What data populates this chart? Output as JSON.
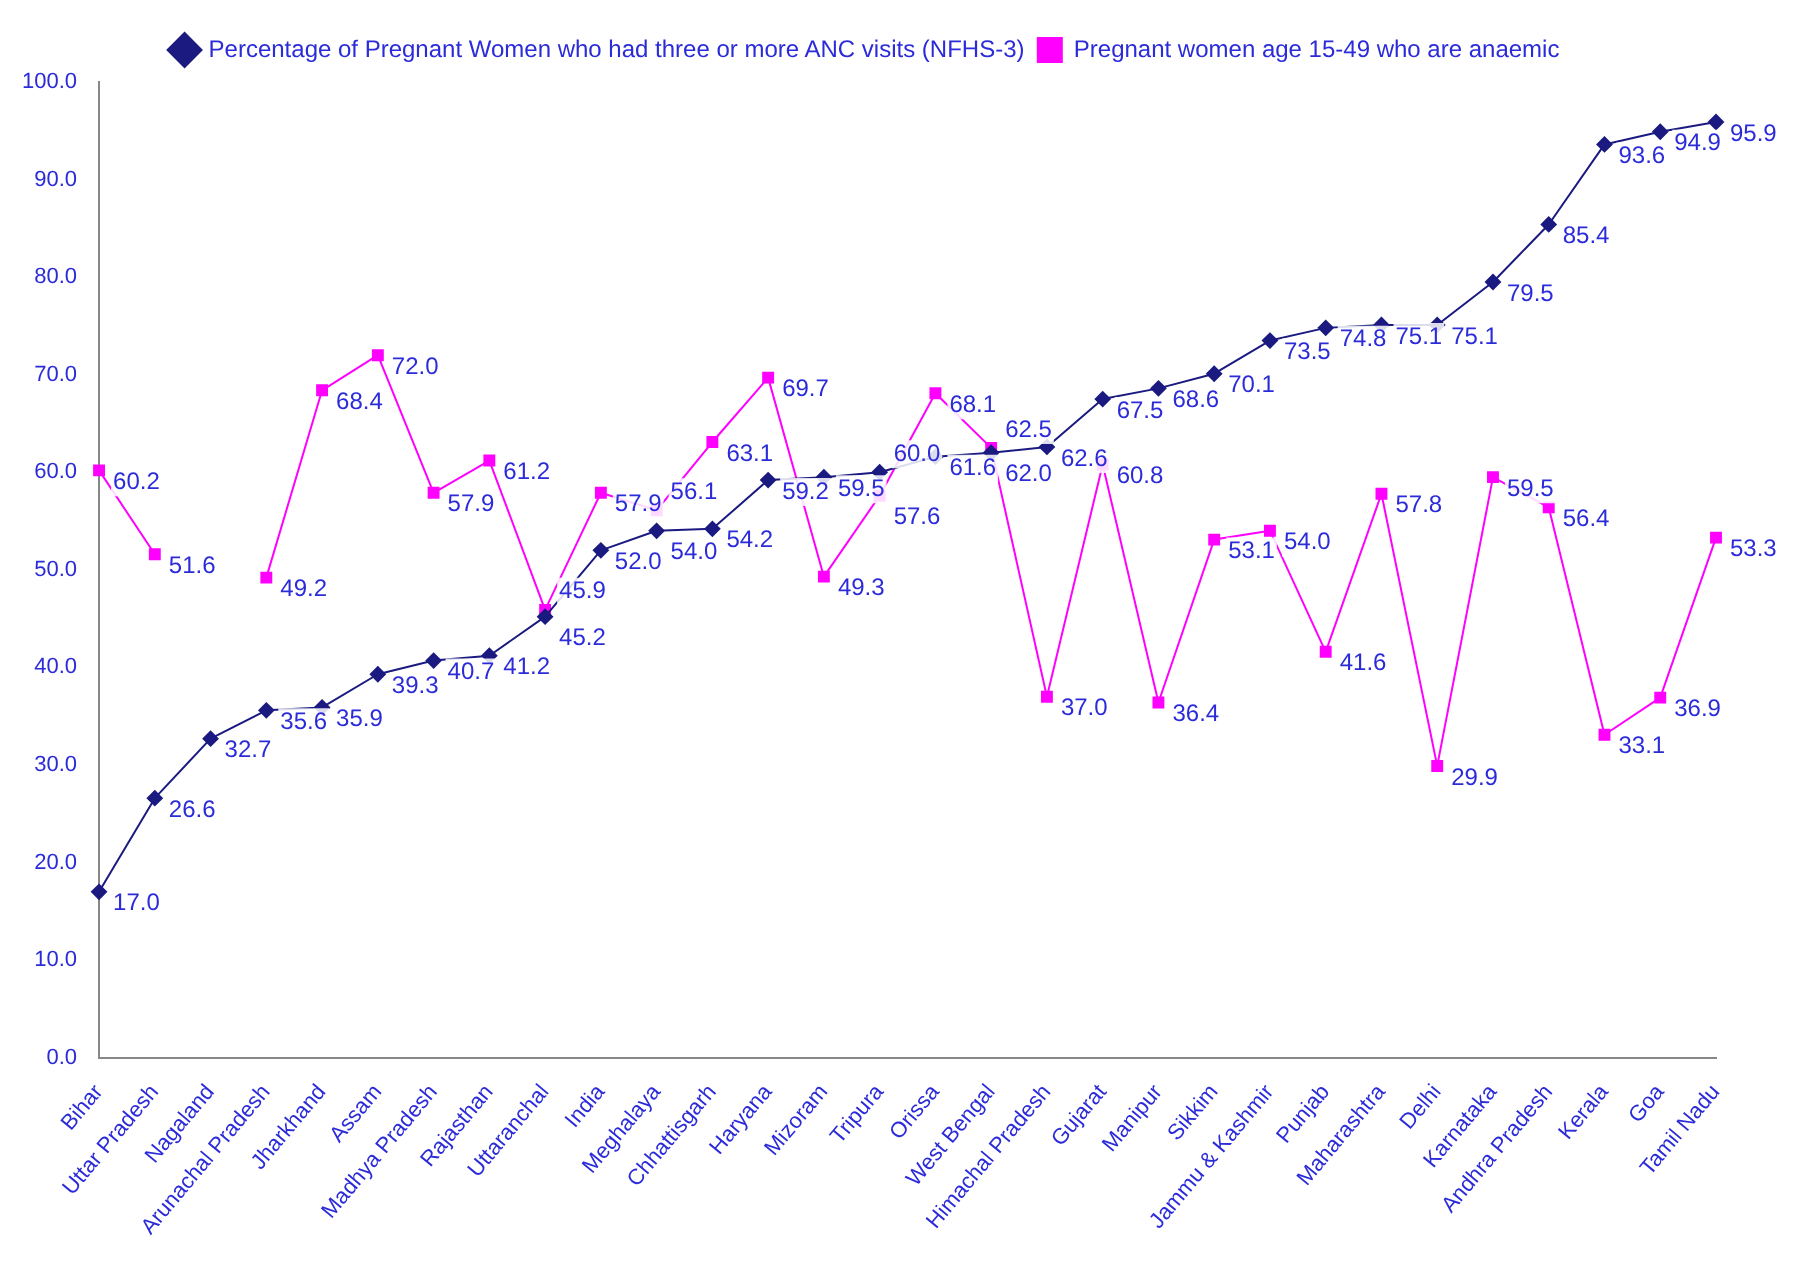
{
  "chart_data": {
    "type": "line",
    "categories": [
      "Bihar",
      "Uttar Pradesh",
      "Nagaland",
      "Arunachal Pradesh",
      "Jharkhand",
      "Assam",
      "Madhya Pradesh",
      "Rajasthan",
      "Uttaranchal",
      "India",
      "Meghalaya",
      "Chhattisgarh",
      "Haryana",
      "Mizoram",
      "Tripura",
      "Orissa",
      "West Bengal",
      "Himachal Pradesh",
      "Gujarat",
      "Manipur",
      "Sikkim",
      "Jammu & Kashmir",
      "Punjab",
      "Maharashtra",
      "Delhi",
      "Karnataka",
      "Andhra Pradesh",
      "Kerala",
      "Goa",
      "Tamil Nadu"
    ],
    "series": [
      {
        "name": "Percentage of Pregnant Women who had three or more ANC visits (NFHS-3)",
        "color": "#1a1a80",
        "marker": "diamond",
        "values": [
          17.0,
          26.6,
          32.7,
          35.6,
          35.9,
          39.3,
          40.7,
          41.2,
          45.2,
          52.0,
          54.0,
          54.2,
          59.2,
          59.5,
          60.0,
          61.6,
          62.0,
          62.6,
          67.5,
          68.6,
          70.1,
          73.5,
          74.8,
          75.1,
          75.1,
          79.5,
          85.4,
          93.6,
          94.9,
          95.9
        ],
        "value_labels": [
          "17.0",
          "26.6",
          "32.7",
          "35.6",
          "35.9",
          "39.3",
          "40.7",
          "41.2",
          "45.2",
          "52.0",
          "54.0",
          "54.2",
          "59.2",
          "59.5",
          "60.0",
          "61.6",
          "62.0",
          "62.6",
          "67.5",
          "68.6",
          "70.1",
          "73.5",
          "74.8",
          "75.1",
          "75.1",
          "79.5",
          "85.4",
          "93.6",
          "94.9",
          "95.9"
        ]
      },
      {
        "name": "Pregnant women age 15-49 who are anaemic",
        "color": "#ff00ff",
        "marker": "square",
        "values": [
          60.2,
          51.6,
          null,
          49.2,
          68.4,
          72.0,
          57.9,
          61.2,
          45.9,
          57.9,
          56.1,
          63.1,
          69.7,
          49.3,
          57.6,
          68.1,
          62.5,
          37.0,
          60.8,
          36.4,
          53.1,
          54.0,
          41.6,
          57.8,
          29.9,
          59.5,
          56.4,
          33.1,
          36.9,
          53.3
        ],
        "value_labels": [
          "60.2",
          "51.6",
          null,
          "49.2",
          "68.4",
          "72.0",
          "57.9",
          "61.2",
          "45.9",
          "57.9",
          "56.1",
          "63.1",
          "69.7",
          "49.3",
          "57.6",
          "68.1",
          "62.5",
          "37.0",
          "60.8",
          "36.4",
          "53.1",
          "54.0",
          "41.6",
          "57.8",
          "29.9",
          "59.5",
          "56.4",
          "33.1",
          "36.9",
          "53.3"
        ]
      }
    ],
    "ylim": [
      0,
      100
    ],
    "yticks": [
      {
        "value": 0,
        "label": "0.0"
      },
      {
        "value": 10,
        "label": "10.0"
      },
      {
        "value": 20,
        "label": "20.0"
      },
      {
        "value": 30,
        "label": "30.0"
      },
      {
        "value": 40,
        "label": "40.0"
      },
      {
        "value": 50,
        "label": "50.0"
      },
      {
        "value": 60,
        "label": "60.0"
      },
      {
        "value": 70,
        "label": "70.0"
      },
      {
        "value": 80,
        "label": "80.0"
      },
      {
        "value": 90,
        "label": "90.0"
      },
      {
        "value": 100,
        "label": "100.0"
      }
    ],
    "grid": false,
    "legend": "top",
    "line_style": "solid"
  }
}
